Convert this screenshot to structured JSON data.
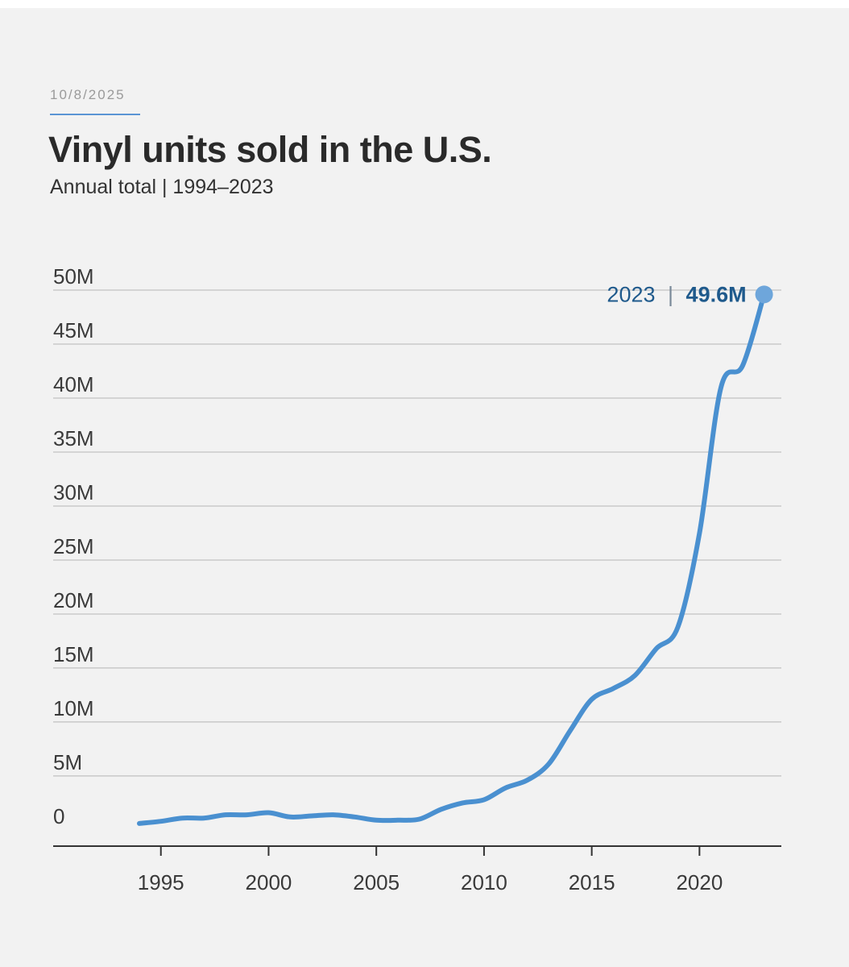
{
  "header": {
    "date": "10/8/2025",
    "title": "Vinyl units sold in the U.S.",
    "subtitle": "Annual total | 1994–2023"
  },
  "colors": {
    "line": "#4a90d0",
    "endpoint": "#6ea6db",
    "callout": "#1f5a8c",
    "grid": "#c9c9c9",
    "axis": "#333333",
    "tick_text": "#3a3a3a",
    "accent_rule": "#5b95d4"
  },
  "chart_data": {
    "type": "line",
    "title": "Vinyl units sold in the U.S.",
    "subtitle": "Annual total | 1994–2023",
    "xlabel": "",
    "ylabel": "",
    "xlim": [
      1990,
      2023.8
    ],
    "ylim": [
      -1.5,
      50
    ],
    "grid": true,
    "y_ticks": [
      0,
      5,
      10,
      15,
      20,
      25,
      30,
      35,
      40,
      45,
      50
    ],
    "y_tick_labels": [
      "0",
      "5M",
      "10M",
      "15M",
      "20M",
      "25M",
      "30M",
      "35M",
      "40M",
      "45M",
      "50M"
    ],
    "x_ticks": [
      1995,
      2000,
      2005,
      2010,
      2015,
      2020
    ],
    "x_tick_labels": [
      "1995",
      "2000",
      "2005",
      "2010",
      "2015",
      "2020"
    ],
    "series": [
      {
        "name": "Vinyl units sold",
        "x": [
          1994,
          1995,
          1996,
          1997,
          1998,
          1999,
          2000,
          2001,
          2002,
          2003,
          2004,
          2005,
          2006,
          2007,
          2008,
          2009,
          2010,
          2011,
          2012,
          2013,
          2014,
          2015,
          2016,
          2017,
          2018,
          2019,
          2020,
          2021,
          2022,
          2023
        ],
        "values": [
          0.6,
          0.8,
          1.1,
          1.1,
          1.4,
          1.4,
          1.6,
          1.2,
          1.3,
          1.4,
          1.2,
          0.9,
          0.9,
          1.0,
          1.9,
          2.5,
          2.8,
          3.9,
          4.6,
          6.1,
          9.2,
          12.1,
          13.1,
          14.3,
          16.8,
          18.8,
          27.5,
          41.0,
          43.0,
          49.6
        ]
      }
    ],
    "annotations": [
      {
        "x": 2023,
        "y": 49.6,
        "year_label": "2023",
        "separator": "|",
        "value_label": "49.6M"
      }
    ]
  }
}
